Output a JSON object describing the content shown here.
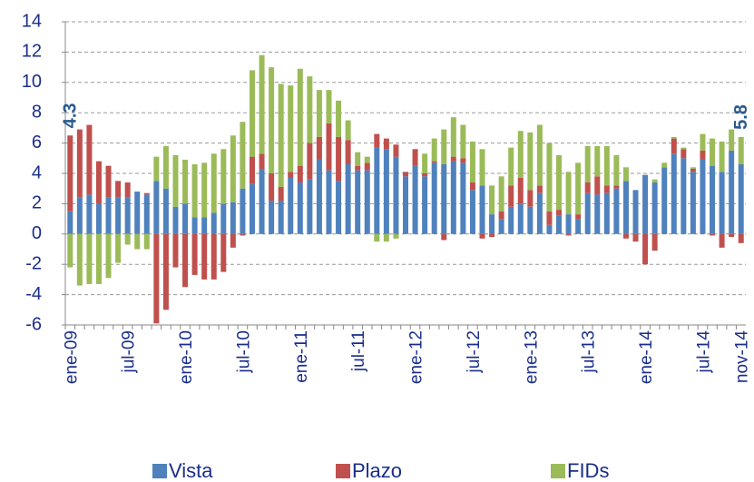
{
  "chart_data": {
    "type": "stacked_bar",
    "categories": [
      "ene-09",
      null,
      null,
      null,
      null,
      null,
      "jul-09",
      null,
      null,
      null,
      null,
      null,
      "ene-10",
      null,
      null,
      null,
      null,
      null,
      "jul-10",
      null,
      null,
      null,
      null,
      null,
      "ene-11",
      null,
      null,
      null,
      null,
      null,
      "jul-11",
      null,
      null,
      null,
      null,
      null,
      "ene-12",
      null,
      null,
      null,
      null,
      null,
      "jul-12",
      null,
      null,
      null,
      null,
      null,
      "ene-13",
      null,
      null,
      null,
      null,
      null,
      "jul-13",
      null,
      null,
      null,
      null,
      null,
      "ene-14",
      null,
      null,
      null,
      null,
      null,
      "jul-14",
      null,
      null,
      null,
      "nov-14"
    ],
    "series": [
      {
        "name": "Vista",
        "color": "#4f81bd",
        "values": [
          1.5,
          2.4,
          2.6,
          2.0,
          2.4,
          2.4,
          2.4,
          2.8,
          2.6,
          3.5,
          3.0,
          1.8,
          2.0,
          1.1,
          1.1,
          1.4,
          2.0,
          2.1,
          3.0,
          3.3,
          4.3,
          2.2,
          2.2,
          3.7,
          3.4,
          3.6,
          4.9,
          4.2,
          3.5,
          4.6,
          4.2,
          4.2,
          5.7,
          5.6,
          5.1,
          3.8,
          4.5,
          3.8,
          4.7,
          4.6,
          4.8,
          4.7,
          2.9,
          3.2,
          1.3,
          1.0,
          1.8,
          2.0,
          1.8,
          2.7,
          0.6,
          1.2,
          1.3,
          1.0,
          2.7,
          2.6,
          2.7,
          3.0,
          3.5,
          2.9,
          3.9,
          3.4,
          4.4,
          5.3,
          5.0,
          4.1,
          4.9,
          4.5,
          4.1,
          5.5,
          4.6
        ]
      },
      {
        "name": "Plazo",
        "color": "#c0504d",
        "values": [
          5.0,
          4.5,
          4.6,
          2.8,
          2.1,
          1.1,
          1.0,
          0,
          0.1,
          -5.9,
          -5.0,
          -2.2,
          -3.5,
          -2.7,
          -3.0,
          -3.0,
          -2.5,
          -0.9,
          -0.1,
          1.8,
          1.0,
          1.8,
          0.9,
          0.4,
          1.1,
          2.4,
          1.5,
          3.1,
          2.9,
          1.6,
          0.3,
          0.5,
          0.9,
          0.7,
          0.8,
          0.3,
          1.1,
          0.2,
          0.1,
          -0.4,
          0.3,
          0.3,
          0.5,
          -0.3,
          -0.2,
          0.5,
          1.4,
          1.7,
          1.1,
          0.5,
          0.9,
          0.4,
          -0.1,
          0.3,
          0.7,
          1.2,
          0.5,
          0.2,
          -0.3,
          -0.5,
          -2.0,
          -1.1,
          0,
          1.0,
          0.6,
          0.2,
          0.6,
          -0.1,
          -0.9,
          -0.2,
          -0.6
        ]
      },
      {
        "name": "FIDs",
        "color": "#9bbb59",
        "values": [
          -2.2,
          -3.4,
          -3.3,
          -3.3,
          -2.9,
          -1.9,
          -0.7,
          -1.0,
          -1.0,
          1.6,
          2.8,
          3.4,
          2.9,
          3.5,
          3.6,
          3.9,
          3.6,
          4.4,
          4.4,
          5.7,
          6.5,
          7.0,
          6.8,
          5.7,
          6.4,
          4.4,
          3.1,
          2.2,
          2.4,
          1.3,
          0.9,
          0.4,
          -0.5,
          -0.5,
          -0.3,
          0,
          0,
          1.3,
          1.5,
          2.3,
          2.6,
          2.2,
          2.7,
          2.4,
          1.9,
          2.3,
          2.5,
          3.1,
          3.8,
          4.0,
          4.5,
          3.6,
          2.8,
          3.4,
          2.4,
          2.0,
          2.6,
          2.0,
          0.9,
          0,
          0,
          0.2,
          0.3,
          0.1,
          0.1,
          0.1,
          1.1,
          1.8,
          2.0,
          1.4,
          1.8
        ]
      }
    ],
    "ylim": [
      -6,
      14
    ],
    "yticks": [
      -6,
      -4,
      -2,
      0,
      2,
      4,
      6,
      8,
      10,
      12,
      14
    ],
    "grid": true,
    "annotations": [
      "4.3",
      "5.8"
    ],
    "legend": "bottom"
  }
}
